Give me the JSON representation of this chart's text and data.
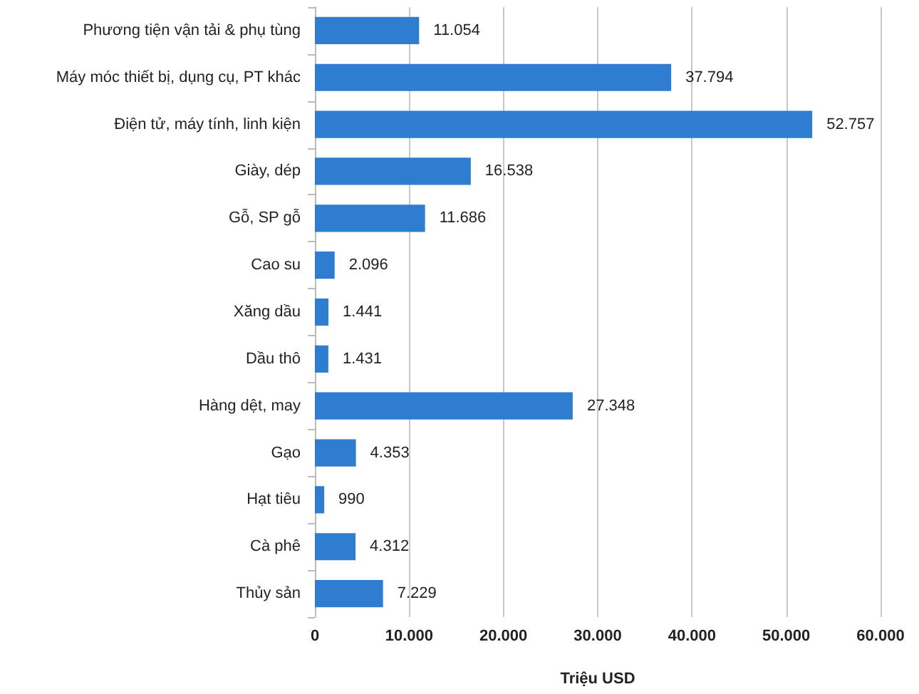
{
  "chart_data": {
    "type": "bar",
    "orientation": "horizontal",
    "xlabel": "Triệu USD",
    "categories": [
      "Phương tiện vận tải & phụ tùng",
      "Máy móc thiết bị, dụng cụ, PT khác",
      "Điện tử, máy tính, linh kiện",
      "Giày, dép",
      "Gỗ, SP gỗ",
      "Cao su",
      "Xăng dầu",
      "Dầu thô",
      "Hàng dệt, may",
      "Gạo",
      "Hạt tiêu",
      "Cà phê",
      "Thủy sản"
    ],
    "values": [
      11054,
      37794,
      52757,
      16538,
      11686,
      2096,
      1441,
      1431,
      27348,
      4353,
      990,
      4312,
      7229
    ],
    "value_labels": [
      "11.054",
      "37.794",
      "52.757",
      "16.538",
      "11.686",
      "2.096",
      "1.441",
      "1.431",
      "27.348",
      "4.353",
      "990",
      "4.312",
      "7.229"
    ],
    "color": "#2e7dd1",
    "xlim": [
      0,
      60000
    ],
    "xticks": [
      0,
      {
        "value": 10000,
        "label": "10.000"
      },
      {
        "value": 20000,
        "label": "20.000"
      },
      {
        "value": 30000,
        "label": "30.000"
      },
      {
        "value": 40000,
        "label": "40.000"
      },
      {
        "value": 50000,
        "label": "50.000"
      },
      {
        "value": 60000,
        "label": "60.000"
      }
    ],
    "grid": "x"
  }
}
